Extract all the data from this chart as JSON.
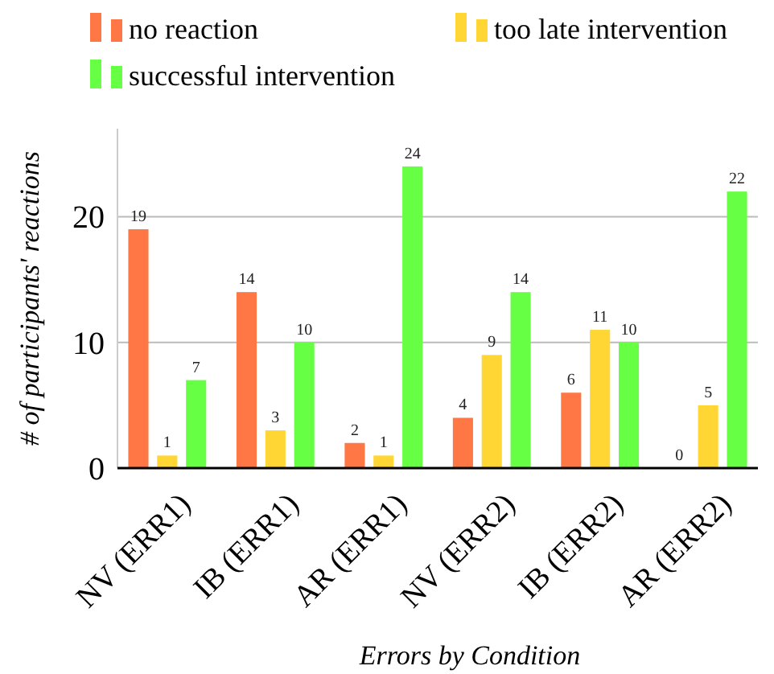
{
  "chart_data": {
    "type": "bar",
    "xlabel": "Errors by Condition",
    "ylabel": "# of participants' reactions",
    "categories": [
      "NV (ERR1)",
      "IB (ERR1)",
      "AR (ERR1)",
      "NV (ERR2)",
      "IB (ERR2)",
      "AR (ERR2)"
    ],
    "series": [
      {
        "name": "no reaction",
        "color": "#ff7744",
        "values": [
          19,
          14,
          2,
          4,
          6,
          0
        ]
      },
      {
        "name": "too late intervention",
        "color": "#ffd633",
        "values": [
          1,
          3,
          1,
          9,
          11,
          5
        ]
      },
      {
        "name": "successful intervention",
        "color": "#66ff44",
        "values": [
          7,
          10,
          24,
          14,
          10,
          22
        ]
      }
    ],
    "ylim": [
      0,
      27
    ],
    "yticks": [
      0,
      10,
      20
    ],
    "grid": "y",
    "legend": "top",
    "data_labels": true
  }
}
